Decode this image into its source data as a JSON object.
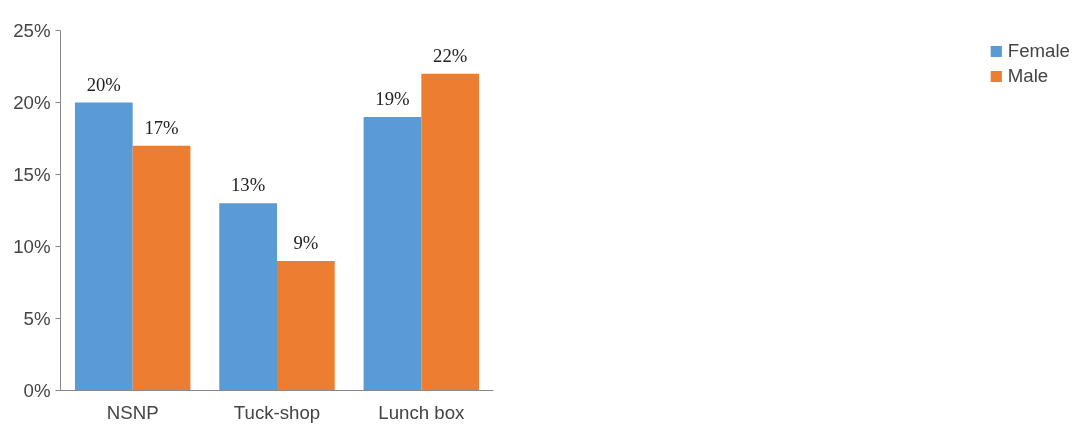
{
  "chart_data": {
    "type": "bar",
    "categories": [
      "NSNP",
      "Tuck-shop",
      "Lunch box"
    ],
    "series": [
      {
        "name": "Female",
        "color": "#5b9bd5",
        "values": [
          20,
          13,
          19
        ],
        "value_labels": [
          "20%",
          "13%",
          "19%"
        ]
      },
      {
        "name": "Male",
        "color": "#ed7d31",
        "values": [
          17,
          9,
          22
        ],
        "value_labels": [
          "17%",
          "9%",
          "22%"
        ]
      }
    ],
    "ylim": [
      0,
      25
    ],
    "yticks": [
      {
        "value": 0,
        "label": "0%"
      },
      {
        "value": 5,
        "label": "5%"
      },
      {
        "value": 10,
        "label": "10%"
      },
      {
        "value": 15,
        "label": "15%"
      },
      {
        "value": 20,
        "label": "20%"
      },
      {
        "value": 25,
        "label": "25%"
      }
    ],
    "grid": false,
    "legend": "right"
  }
}
